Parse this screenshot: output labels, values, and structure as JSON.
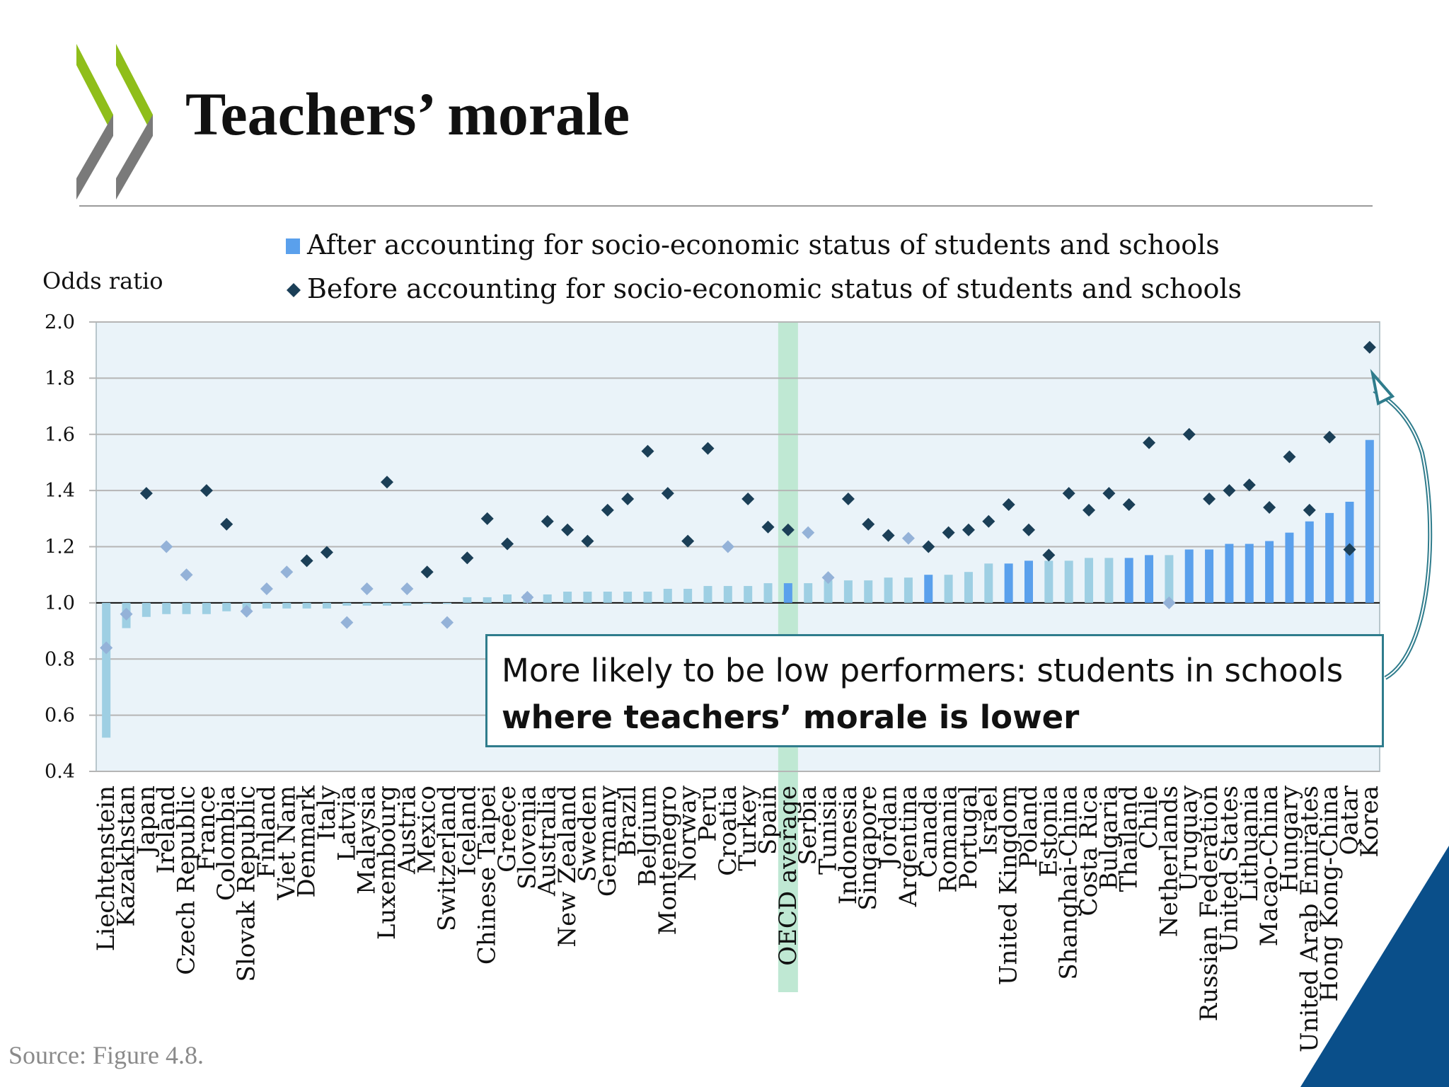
{
  "slide": {
    "title": "Teachers’ morale",
    "source": "Source: Figure 4.8.",
    "callout_line1": "More likely to be low performers: students in schools",
    "callout_line2": "where teachers’ morale is lower",
    "colors": {
      "bar_significant": "#5aa0ec",
      "bar_not_significant": "#9ecfe3",
      "diamond_significant": "#1b3f57",
      "diamond_not_significant": "#94b2d8",
      "oecd_band": "#bfe8d3",
      "plot_bg": "#eaf3f9",
      "callout_border": "#2f7c8c",
      "logo_green": "#8fbe1a",
      "logo_grey": "#7a7a7a",
      "corner_blue": "#0a4f8a"
    },
    "icons": {
      "logo": "oecd-chevrons-logo",
      "callout_arrow": "curved-arrow-icon"
    }
  },
  "chart_data": {
    "type": "bar",
    "ylabel": "Odds ratio",
    "ylim": [
      0.4,
      2.0
    ],
    "yticks": [
      "2.0",
      "1.8",
      "1.6",
      "1.4",
      "1.2",
      "1.0",
      "0.8",
      "0.6",
      "0.4"
    ],
    "baseline": 1.0,
    "highlight_category": "OECD average",
    "categories": [
      "Liechtenstein",
      "Kazakhstan",
      "Japan",
      "Ireland",
      "Czech Republic",
      "France",
      "Colombia",
      "Slovak Republic",
      "Finland",
      "Viet Nam",
      "Denmark",
      "Italy",
      "Latvia",
      "Malaysia",
      "Luxembourg",
      "Austria",
      "Mexico",
      "Switzerland",
      "Iceland",
      "Chinese Taipei",
      "Greece",
      "Slovenia",
      "Australia",
      "New Zealand",
      "Sweden",
      "Germany",
      "Brazil",
      "Belgium",
      "Montenegro",
      "Norway",
      "Peru",
      "Croatia",
      "Turkey",
      "Spain",
      "OECD average",
      "Serbia",
      "Tunisia",
      "Indonesia",
      "Singapore",
      "Jordan",
      "Argentina",
      "Canada",
      "Romania",
      "Portugal",
      "Israel",
      "United Kingdom",
      "Poland",
      "Estonia",
      "Shanghai-China",
      "Costa Rica",
      "Bulgaria",
      "Thailand",
      "Chile",
      "Netherlands",
      "Uruguay",
      "Russian Federation",
      "United States",
      "Lithuania",
      "Macao-China",
      "Hungary",
      "United Arab Emirates",
      "Hong Kong-China",
      "Qatar",
      "Korea"
    ],
    "series": [
      {
        "name": "After accounting for socio-economic status of students and schools",
        "marker": "bar",
        "values": [
          0.52,
          0.91,
          0.95,
          0.96,
          0.96,
          0.96,
          0.97,
          0.97,
          0.98,
          0.98,
          0.98,
          0.98,
          0.99,
          0.99,
          0.99,
          0.99,
          1.0,
          1.0,
          1.02,
          1.02,
          1.03,
          1.03,
          1.03,
          1.04,
          1.04,
          1.04,
          1.04,
          1.04,
          1.05,
          1.05,
          1.06,
          1.06,
          1.06,
          1.07,
          1.07,
          1.07,
          1.08,
          1.08,
          1.08,
          1.09,
          1.09,
          1.1,
          1.1,
          1.11,
          1.14,
          1.14,
          1.15,
          1.15,
          1.15,
          1.16,
          1.16,
          1.16,
          1.17,
          1.17,
          1.19,
          1.19,
          1.21,
          1.21,
          1.22,
          1.25,
          1.29,
          1.32,
          1.36,
          1.58
        ],
        "significant": [
          false,
          false,
          false,
          false,
          false,
          false,
          false,
          false,
          false,
          false,
          false,
          false,
          false,
          false,
          false,
          false,
          false,
          false,
          false,
          false,
          false,
          false,
          false,
          false,
          false,
          false,
          false,
          false,
          false,
          false,
          false,
          false,
          false,
          false,
          true,
          false,
          false,
          false,
          false,
          false,
          false,
          true,
          false,
          false,
          false,
          true,
          true,
          false,
          false,
          false,
          false,
          true,
          true,
          false,
          true,
          true,
          true,
          true,
          true,
          true,
          true,
          true,
          true,
          true
        ]
      },
      {
        "name": "Before accounting for socio-economic status of students and schools",
        "marker": "diamond",
        "values": [
          0.84,
          0.96,
          1.39,
          1.2,
          1.1,
          1.4,
          1.28,
          0.97,
          1.05,
          1.11,
          1.15,
          1.18,
          0.93,
          1.05,
          1.43,
          1.05,
          1.11,
          0.93,
          1.16,
          1.3,
          1.21,
          1.02,
          1.29,
          1.26,
          1.22,
          1.33,
          1.37,
          1.54,
          1.39,
          1.22,
          1.55,
          1.2,
          1.37,
          1.27,
          1.26,
          1.25,
          1.09,
          1.37,
          1.28,
          1.24,
          1.23,
          1.2,
          1.25,
          1.26,
          1.29,
          1.35,
          1.26,
          1.17,
          1.39,
          1.33,
          1.39,
          1.35,
          1.57,
          1.0,
          1.6,
          1.37,
          1.4,
          1.42,
          1.34,
          1.52,
          1.33,
          1.59,
          1.19,
          1.91
        ],
        "significant": [
          false,
          false,
          true,
          false,
          false,
          true,
          true,
          false,
          false,
          false,
          true,
          true,
          false,
          false,
          true,
          false,
          true,
          false,
          true,
          true,
          true,
          false,
          true,
          true,
          true,
          true,
          true,
          true,
          true,
          true,
          true,
          false,
          true,
          true,
          true,
          false,
          false,
          true,
          true,
          true,
          false,
          true,
          true,
          true,
          true,
          true,
          true,
          true,
          true,
          true,
          true,
          true,
          true,
          false,
          true,
          true,
          true,
          true,
          true,
          true,
          true,
          true,
          true,
          true
        ]
      }
    ]
  }
}
